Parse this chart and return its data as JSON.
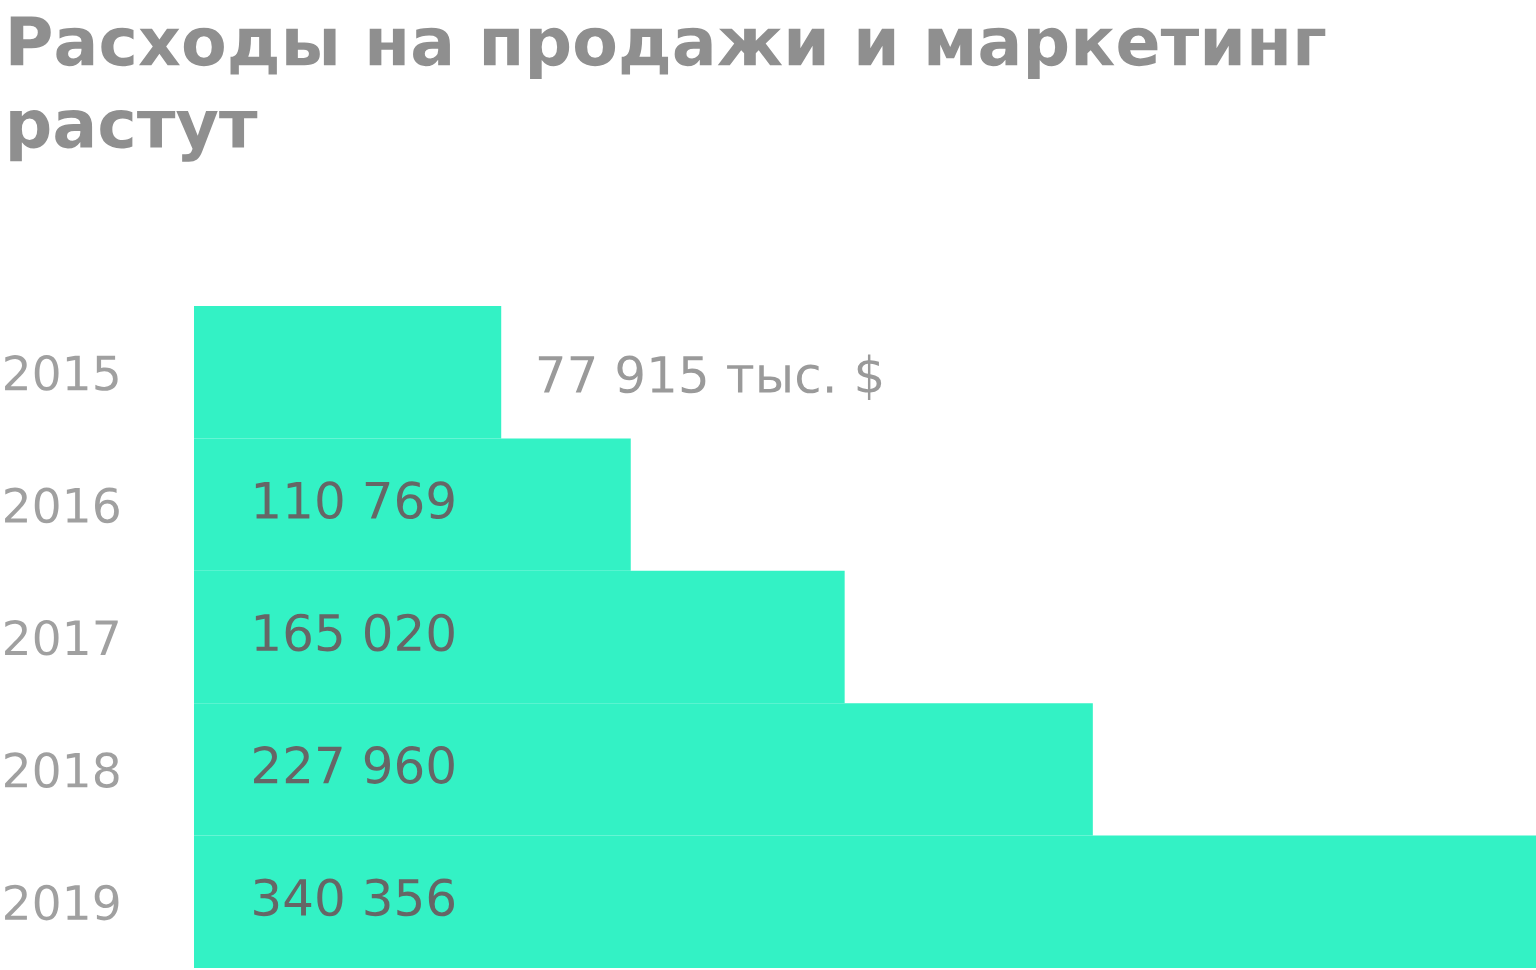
{
  "chart_data": {
    "type": "bar",
    "orientation": "horizontal",
    "title": "Расходы на продажи и маркетинг растут",
    "categories": [
      "2015",
      "2016",
      "2017",
      "2018",
      "2019"
    ],
    "values": [
      77915,
      110769,
      165020,
      227960,
      340356
    ],
    "value_labels": [
      "77 915 тыс. $",
      "110 769",
      "165 020",
      "227 960",
      "340 356"
    ],
    "color": "#33f2c5",
    "xlim": [
      0,
      340356
    ],
    "tick_labels": "y",
    "grid": false,
    "legend": false
  }
}
